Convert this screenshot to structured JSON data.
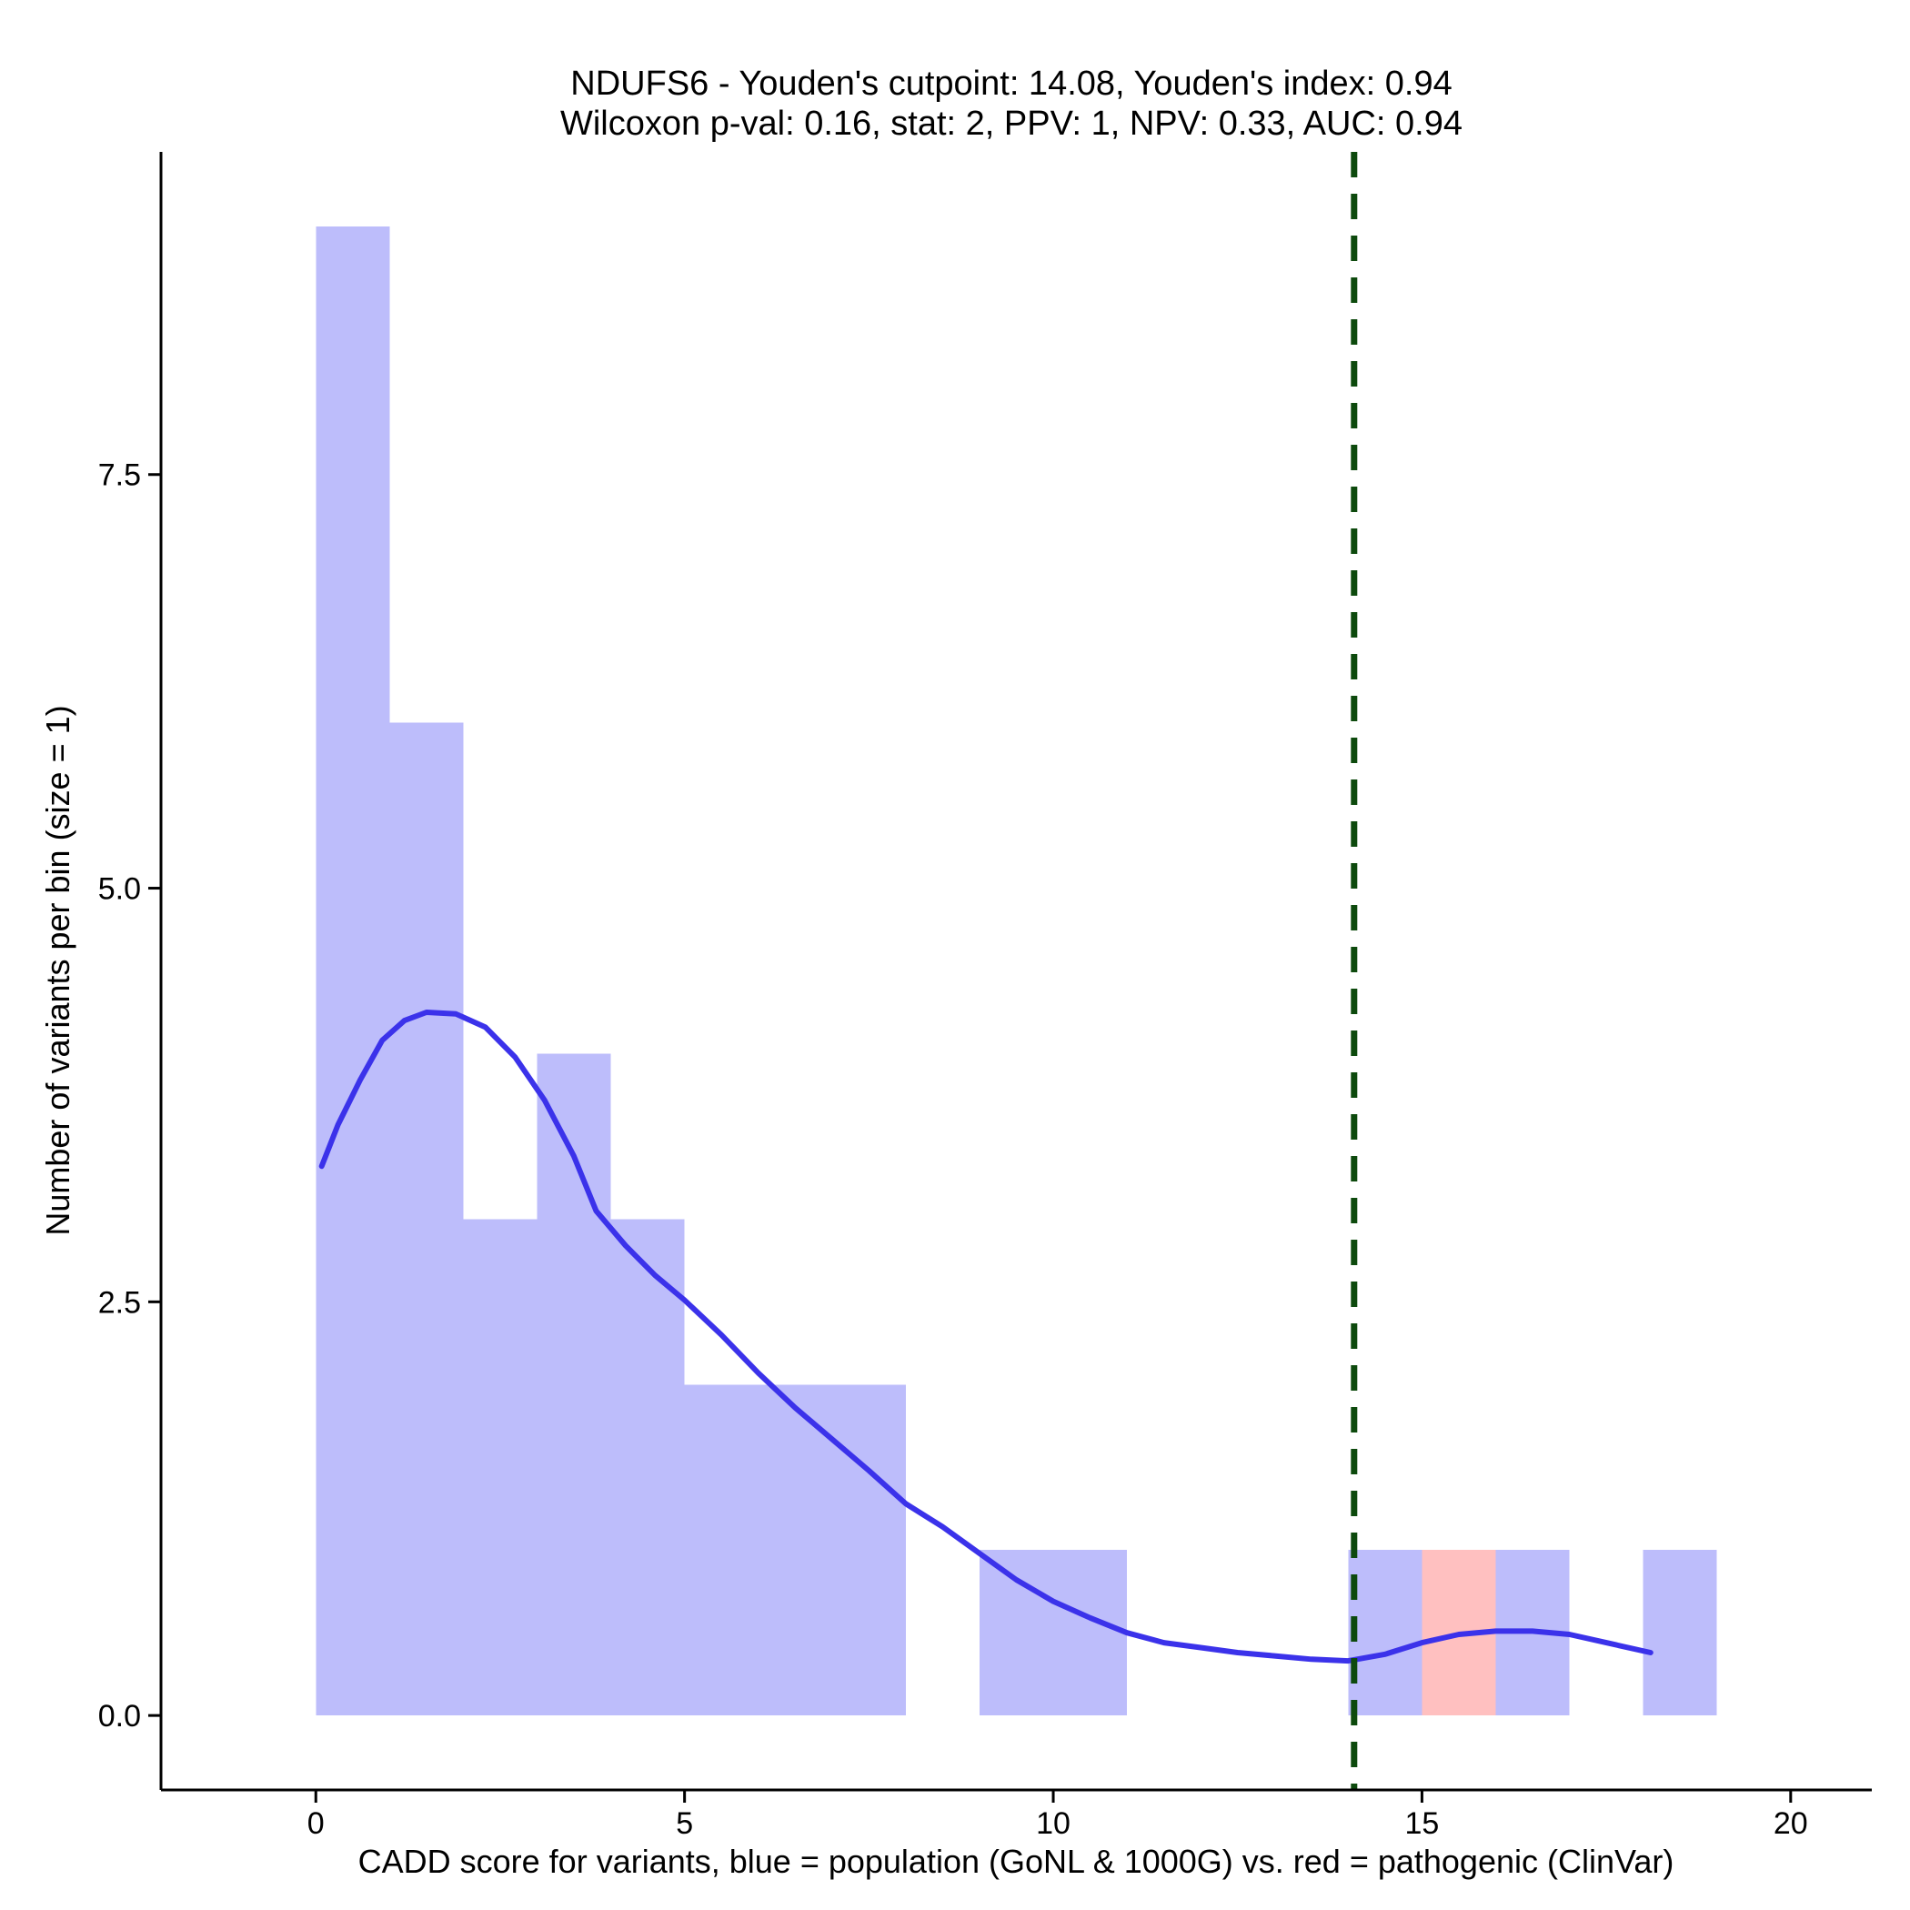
{
  "chart_data": {
    "type": "bar",
    "title": "NDUFS6 - Youden's cutpoint: 14.08, Youden's index: 0.94",
    "subtitle": "Wilcoxon p-val: 0.16, stat: 2, PPV: 1, NPV: 0.33, AUC: 0.94",
    "xlabel": "CADD score for variants, blue = population (GoNL & 1000G) vs. red = pathogenic (ClinVar)",
    "ylabel": "Number of variants per bin (size = 1)",
    "xlim": [
      -2.1,
      21.1
    ],
    "ylim": [
      -0.45,
      9.45
    ],
    "x_ticks": [
      0,
      5,
      10,
      15,
      20
    ],
    "x_tick_labels": [
      "0",
      "5",
      "10",
      "15",
      "20"
    ],
    "y_ticks": [
      0,
      2.5,
      5,
      7.5
    ],
    "y_tick_labels": [
      "0.0",
      "2.5",
      "5.0",
      "7.5"
    ],
    "bin_size": 1,
    "colors": {
      "population": "#bdbdfb",
      "pathogenic": "#ffc0c0",
      "density": "#3b32ea",
      "cutpoint": "#0d4a0d",
      "axis": "#000000"
    },
    "series": [
      {
        "name": "population",
        "bins": [
          {
            "x0": 0,
            "x1": 1,
            "count": 9
          },
          {
            "x0": 1,
            "x1": 2,
            "count": 6
          },
          {
            "x0": 2,
            "x1": 3,
            "count": 3
          },
          {
            "x0": 3,
            "x1": 4,
            "count": 4
          },
          {
            "x0": 4,
            "x1": 5,
            "count": 3
          },
          {
            "x0": 5,
            "x1": 6,
            "count": 2
          },
          {
            "x0": 6,
            "x1": 7,
            "count": 2
          },
          {
            "x0": 7,
            "x1": 8,
            "count": 2
          },
          {
            "x0": 9,
            "x1": 10,
            "count": 1
          },
          {
            "x0": 10,
            "x1": 11,
            "count": 1
          },
          {
            "x0": 14,
            "x1": 15,
            "count": 1
          },
          {
            "x0": 16,
            "x1": 17,
            "count": 1
          },
          {
            "x0": 18,
            "x1": 19,
            "count": 1
          }
        ]
      },
      {
        "name": "pathogenic",
        "bins": [
          {
            "x0": 15,
            "x1": 16,
            "count": 1
          }
        ]
      }
    ],
    "density_curve": {
      "name": "population density (scaled)",
      "points": [
        [
          0.08,
          3.32
        ],
        [
          0.3,
          3.57
        ],
        [
          0.6,
          3.84
        ],
        [
          0.9,
          4.08
        ],
        [
          1.2,
          4.2
        ],
        [
          1.5,
          4.25
        ],
        [
          1.9,
          4.24
        ],
        [
          2.3,
          4.16
        ],
        [
          2.7,
          3.98
        ],
        [
          3.1,
          3.72
        ],
        [
          3.5,
          3.38
        ],
        [
          3.8,
          3.05
        ],
        [
          4.2,
          2.84
        ],
        [
          4.6,
          2.66
        ],
        [
          5.0,
          2.51
        ],
        [
          5.5,
          2.3
        ],
        [
          6.0,
          2.07
        ],
        [
          6.5,
          1.86
        ],
        [
          7.0,
          1.67
        ],
        [
          7.5,
          1.48
        ],
        [
          8.0,
          1.28
        ],
        [
          8.5,
          1.14
        ],
        [
          9.0,
          0.98
        ],
        [
          9.5,
          0.82
        ],
        [
          10.0,
          0.69
        ],
        [
          10.5,
          0.59
        ],
        [
          11.0,
          0.5
        ],
        [
          11.5,
          0.44
        ],
        [
          12.0,
          0.41
        ],
        [
          12.5,
          0.38
        ],
        [
          13.0,
          0.36
        ],
        [
          13.5,
          0.34
        ],
        [
          14.0,
          0.33
        ],
        [
          14.5,
          0.37
        ],
        [
          15.0,
          0.44
        ],
        [
          15.5,
          0.49
        ],
        [
          16.0,
          0.51
        ],
        [
          16.5,
          0.51
        ],
        [
          17.0,
          0.49
        ],
        [
          17.5,
          0.44
        ],
        [
          18.1,
          0.38
        ]
      ]
    },
    "cutpoint": {
      "x": 14.08,
      "label": "Youden's cutpoint"
    }
  }
}
